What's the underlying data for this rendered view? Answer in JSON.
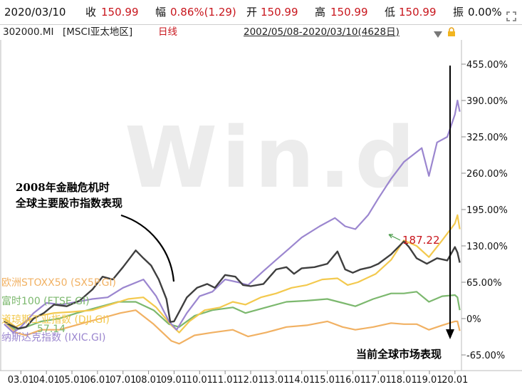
{
  "header": {
    "date": "2020/03/10",
    "close_label": "收",
    "close_value": "150.99",
    "change_label": "幅",
    "change_value": "0.86%(1.29)",
    "open_label": "开",
    "open_value": "150.99",
    "high_label": "高",
    "high_value": "150.99",
    "low_label": "低",
    "low_value": "150.99",
    "amp_label": "振",
    "amp_value": "0.00%"
  },
  "subheader": {
    "code": "302000.MI",
    "name": "[MSCI亚太地区]",
    "period": "日线",
    "range": "2002/05/08-2020/03/10(4628日)"
  },
  "icons": [
    "expand-arrows-icon",
    "dropdown-triangle-icon",
    "lock-icon"
  ],
  "colors": {
    "asia": "#3f3f3f",
    "nasdaq": "#9b86cf",
    "dji": "#f3c94e",
    "ftse": "#7cb86e",
    "stoxx": "#f1b163",
    "value_label": "#c8161d",
    "watermark": "#ececec"
  },
  "watermark": "Win.d",
  "chart_data": {
    "type": "line",
    "x_ticks": [
      "03.01",
      "04.01",
      "05.01",
      "06.01",
      "07.01",
      "08.01",
      "09.01",
      "10.01",
      "11.01",
      "12.01",
      "13.01",
      "14.01",
      "15.01",
      "16.01",
      "17.01",
      "18.01",
      "19.01",
      "20.01"
    ],
    "y_ticks": [
      "455.00%",
      "390.00%",
      "325.00%",
      "260.00%",
      "195.00%",
      "130.00%",
      "65.00%",
      "0%",
      "-65.00%"
    ],
    "ylim": [
      -65,
      455
    ],
    "xlim": [
      2002.35,
      2020.2
    ],
    "series": [
      {
        "name": "MSCI亚太地区",
        "color_key": "asia",
        "x": [
          2002.35,
          2002.6,
          2002.9,
          2003.2,
          2003.5,
          2003.9,
          2004.3,
          2004.8,
          2005.3,
          2005.8,
          2006.2,
          2006.6,
          2007.0,
          2007.3,
          2007.5,
          2007.8,
          2008.1,
          2008.4,
          2008.7,
          2008.85,
          2009.0,
          2009.2,
          2009.5,
          2009.9,
          2010.3,
          2010.6,
          2011.0,
          2011.4,
          2011.7,
          2012.0,
          2012.5,
          2013.0,
          2013.4,
          2013.7,
          2014.0,
          2014.5,
          2015.0,
          2015.4,
          2015.7,
          2016.0,
          2016.3,
          2016.7,
          2017.0,
          2017.5,
          2018.0,
          2018.2,
          2018.5,
          2018.9,
          2019.3,
          2019.7,
          2020.0,
          2020.1,
          2020.19
        ],
        "y": [
          -5,
          -12,
          -18,
          -15,
          0,
          10,
          25,
          22,
          32,
          52,
          75,
          70,
          92,
          110,
          122,
          108,
          95,
          70,
          35,
          -6,
          -5,
          12,
          38,
          55,
          62,
          55,
          78,
          75,
          60,
          58,
          62,
          88,
          92,
          80,
          90,
          92,
          98,
          120,
          88,
          82,
          88,
          92,
          98,
          115,
          138,
          128,
          108,
          98,
          108,
          104,
          128,
          118,
          100
        ]
      },
      {
        "name": "纳斯达克指数 (IXIC.GI)",
        "color_key": "nasdaq",
        "x": [
          2002.35,
          2002.7,
          2003.0,
          2003.5,
          2004.0,
          2004.6,
          2005.2,
          2005.8,
          2006.4,
          2007.0,
          2007.8,
          2008.3,
          2008.8,
          2009.1,
          2009.5,
          2010.0,
          2010.5,
          2011.0,
          2011.5,
          2011.9,
          2012.5,
          2013.0,
          2013.5,
          2014.0,
          2014.7,
          2015.3,
          2015.7,
          2016.1,
          2016.6,
          2017.0,
          2017.5,
          2018.0,
          2018.7,
          2018.98,
          2019.3,
          2019.7,
          2020.0,
          2020.1,
          2020.19
        ],
        "y": [
          -10,
          -25,
          -15,
          10,
          28,
          25,
          30,
          35,
          38,
          55,
          70,
          40,
          -5,
          -20,
          10,
          40,
          48,
          70,
          65,
          60,
          85,
          105,
          125,
          145,
          165,
          180,
          165,
          160,
          185,
          215,
          250,
          280,
          305,
          255,
          315,
          325,
          365,
          390,
          370
        ]
      },
      {
        "name": "道琼斯工业指数 (DJI.GI)",
        "color_key": "dji",
        "x": [
          2002.35,
          2002.8,
          2003.2,
          2003.7,
          2004.3,
          2005.0,
          2005.8,
          2006.5,
          2007.2,
          2007.8,
          2008.3,
          2008.9,
          2009.2,
          2009.6,
          2010.2,
          2010.8,
          2011.3,
          2011.8,
          2012.4,
          2013.0,
          2013.6,
          2014.2,
          2014.8,
          2015.4,
          2015.8,
          2016.2,
          2016.9,
          2017.5,
          2018.0,
          2018.5,
          2018.98,
          2019.5,
          2020.0,
          2020.1,
          2020.19
        ],
        "y": [
          0,
          -15,
          -5,
          5,
          10,
          12,
          15,
          25,
          35,
          38,
          20,
          -12,
          -25,
          -5,
          15,
          20,
          30,
          25,
          38,
          45,
          55,
          60,
          70,
          72,
          60,
          65,
          80,
          105,
          140,
          130,
          110,
          140,
          170,
          185,
          160
        ]
      },
      {
        "name": "富时100 (FTSE.GI)",
        "color_key": "ftse",
        "x": [
          2002.35,
          2002.8,
          2003.2,
          2003.8,
          2004.5,
          2005.2,
          2006.0,
          2006.8,
          2007.5,
          2008.2,
          2008.8,
          2009.2,
          2009.8,
          2010.5,
          2011.3,
          2011.8,
          2012.6,
          2013.4,
          2014.2,
          2015.0,
          2015.6,
          2016.1,
          2016.8,
          2017.5,
          2018.0,
          2018.5,
          2018.98,
          2019.5,
          2020.0,
          2020.1,
          2020.19
        ],
        "y": [
          -5,
          -20,
          -15,
          -5,
          0,
          10,
          20,
          30,
          30,
          15,
          -10,
          -15,
          5,
          15,
          20,
          10,
          20,
          30,
          32,
          35,
          28,
          22,
          35,
          45,
          45,
          48,
          30,
          40,
          42,
          38,
          15
        ]
      },
      {
        "name": "欧洲STOXX50 (SX5P.GI)",
        "color_key": "stoxx",
        "x": [
          2002.35,
          2002.8,
          2003.2,
          2003.8,
          2004.5,
          2005.3,
          2006.1,
          2006.9,
          2007.5,
          2008.2,
          2008.9,
          2009.2,
          2009.8,
          2010.5,
          2011.3,
          2011.9,
          2012.6,
          2013.4,
          2014.2,
          2015.0,
          2015.6,
          2016.1,
          2016.8,
          2017.5,
          2018.0,
          2018.5,
          2018.98,
          2019.5,
          2020.0,
          2020.1,
          2020.19
        ],
        "y": [
          -5,
          -25,
          -30,
          -20,
          -20,
          -10,
          0,
          10,
          15,
          -10,
          -40,
          -45,
          -30,
          -25,
          -20,
          -32,
          -25,
          -15,
          -12,
          -5,
          -15,
          -20,
          -15,
          -8,
          -10,
          -10,
          -20,
          -12,
          -5,
          -5,
          -22
        ]
      }
    ],
    "value_label": "187.22",
    "legend": [
      "欧洲STOXX50 (SX5P.GI)",
      "富时100 (FTSE.GI)",
      "道琼斯工业指数 (DJI.GI)",
      "纳斯达克指数 (IXIC.GI)"
    ],
    "legend_overlap_label": "57.14",
    "annotations": {
      "crisis": [
        "2008年金融危机时",
        "全球主要股市指数表现"
      ],
      "current": "当前全球市场表现"
    }
  }
}
